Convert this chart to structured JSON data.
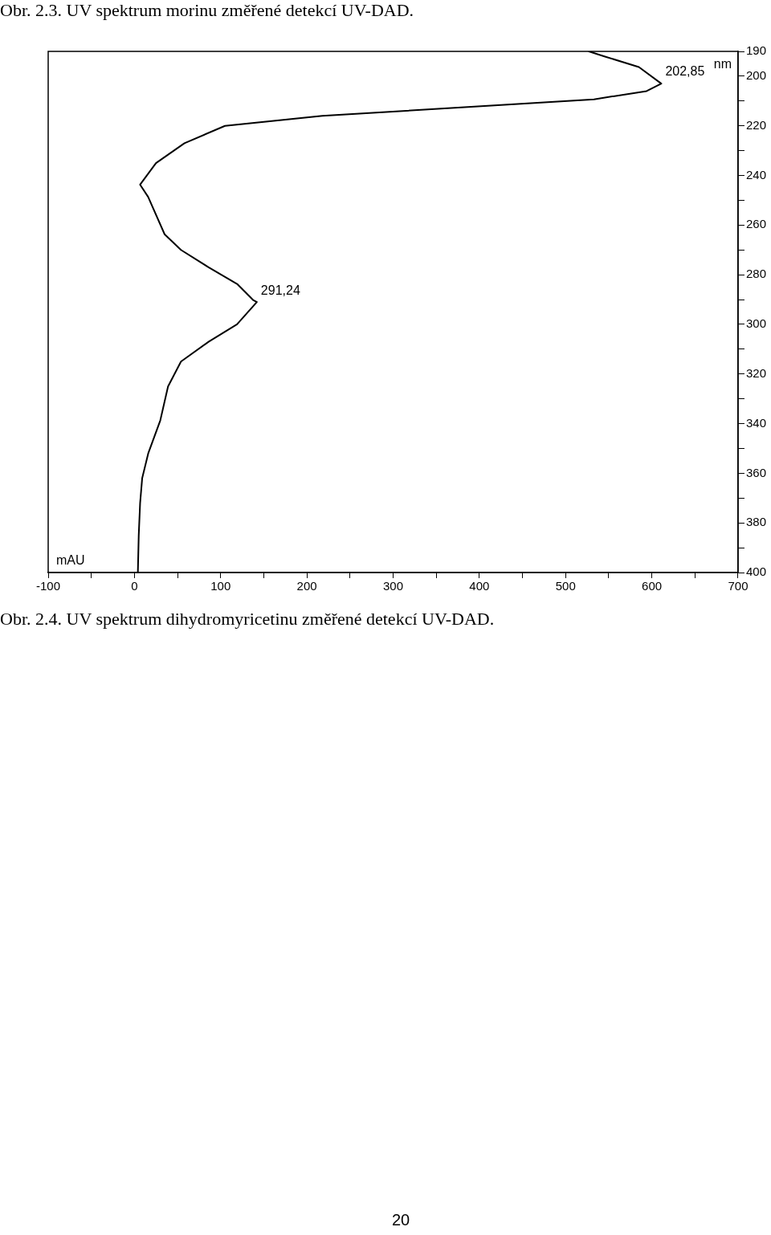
{
  "chart_data": {
    "type": "line",
    "xlabel": "mAU",
    "ylabel": "nm",
    "x": [
      527,
      545,
      585,
      611,
      594,
      533,
      406,
      218,
      105,
      58,
      25,
      6.6,
      16,
      35,
      54,
      86,
      119,
      138,
      142,
      119,
      86,
      54,
      39,
      30,
      16,
      9,
      6.6,
      5,
      4
    ],
    "series": [
      {
        "color": "#000000",
        "values": [
          190,
          192,
          196.3,
          203,
          206,
          209.3,
          212,
          216,
          220,
          227,
          235,
          243.7,
          248.7,
          263.7,
          270,
          277,
          283.7,
          290.3,
          291,
          300,
          307,
          315,
          325,
          338.7,
          352,
          362,
          372,
          385,
          400
        ]
      }
    ],
    "xlim": [
      -100,
      700
    ],
    "xticks": [
      -100,
      {
        "value": -50,
        "label": null
      },
      0,
      {
        "value": 50,
        "label": null
      },
      100,
      {
        "value": 150,
        "label": null
      },
      200,
      {
        "value": 250,
        "label": null
      },
      300,
      {
        "value": 350,
        "label": null
      },
      400,
      {
        "value": 450,
        "label": null
      },
      500,
      {
        "value": 550,
        "label": null
      },
      600,
      {
        "value": 650,
        "label": null
      },
      700
    ],
    "ylim": [
      400,
      190
    ],
    "yticks": [
      190,
      200,
      {
        "value": 210,
        "label": null
      },
      220,
      {
        "value": 230,
        "label": null
      },
      240,
      {
        "value": 250,
        "label": null
      },
      260,
      {
        "value": 270,
        "label": null
      },
      280,
      {
        "value": 290,
        "label": null
      },
      300,
      {
        "value": 310,
        "label": null
      },
      320,
      {
        "value": 330,
        "label": null
      },
      340,
      {
        "value": 350,
        "label": null
      },
      360,
      {
        "value": 370,
        "label": null
      },
      380,
      {
        "value": 390,
        "label": null
      },
      400
    ],
    "legend": false,
    "marker": "none",
    "line_style": "solid",
    "annotations": [
      {
        "text": "202,85",
        "x": 611,
        "y": 202.85
      },
      {
        "text": "291,24",
        "x": 142,
        "y": 291.24
      },
      "Obr. 2.3. UV spektrum morinu změřené detekcí UV-DAD.",
      "Obr. 2.4. UV spektrum dihydromyricetinu změřené detekcí UV-DAD.",
      "20"
    ]
  }
}
